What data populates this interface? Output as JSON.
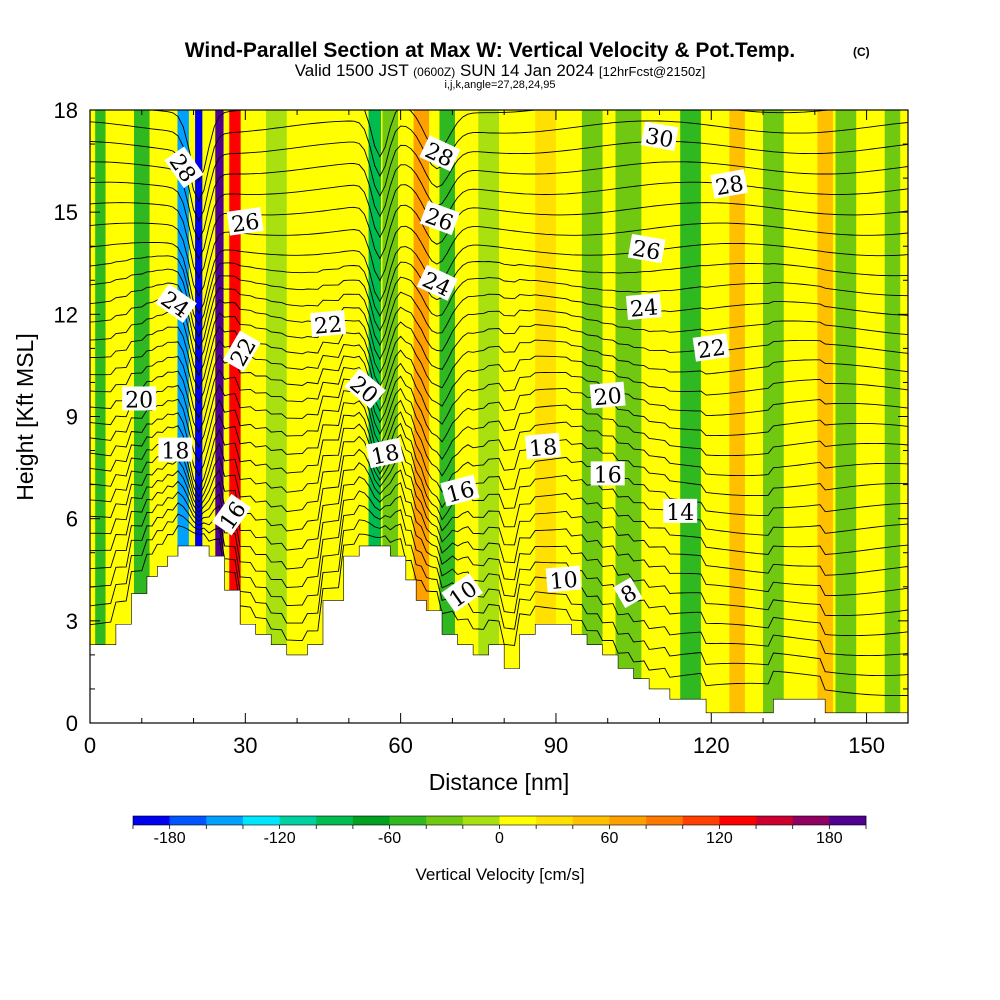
{
  "title": {
    "main": "Wind-Parallel Section at Max W: Vertical Velocity & Pot.Temp.",
    "copyright": "(C)",
    "valid_prefix": "Valid 1500 JST",
    "utc": "(0600Z)",
    "date": "SUN 14 Jan 2024",
    "forecast": "[12hrFcst@2150z]",
    "indices": "i,j,k,angle=27,28,24,95"
  },
  "chart_data": {
    "type": "heatmap",
    "xlabel": "Distance [nm]",
    "ylabel": "Height [Kft MSL]",
    "xlim": [
      0,
      158
    ],
    "ylim": [
      0,
      18
    ],
    "x_ticks": [
      "0",
      "30",
      "60",
      "90",
      "120",
      "150"
    ],
    "y_ticks": [
      "0",
      "3",
      "6",
      "9",
      "12",
      "15",
      "18"
    ],
    "colorbar": {
      "label": "Vertical Velocity [cm/s]",
      "min": -200,
      "max": 200,
      "step": 20,
      "tick_labels": [
        "-180",
        "-120",
        "-60",
        "0",
        "60",
        "120",
        "180"
      ],
      "colors": [
        "#0000f0",
        "#0055ff",
        "#00a0ff",
        "#00e6ff",
        "#00d0a0",
        "#00bb50",
        "#00a020",
        "#30b820",
        "#70c810",
        "#a8e010",
        "#ffff00",
        "#ffe000",
        "#ffc000",
        "#ffa000",
        "#ff7800",
        "#ff4000",
        "#ff0000",
        "#cc0030",
        "#900060",
        "#500090"
      ]
    },
    "terrain_profile": [
      [
        0,
        2.3
      ],
      [
        5,
        2.3
      ],
      [
        5,
        2.9
      ],
      [
        8,
        2.9
      ],
      [
        8,
        3.8
      ],
      [
        11,
        3.8
      ],
      [
        11,
        4.3
      ],
      [
        13,
        4.3
      ],
      [
        13,
        4.6
      ],
      [
        15,
        4.6
      ],
      [
        15,
        4.9
      ],
      [
        17,
        4.9
      ],
      [
        17,
        5.2
      ],
      [
        23,
        5.2
      ],
      [
        23,
        4.9
      ],
      [
        26,
        4.9
      ],
      [
        26,
        3.9
      ],
      [
        29,
        3.9
      ],
      [
        29,
        2.9
      ],
      [
        32,
        2.9
      ],
      [
        32,
        2.6
      ],
      [
        35,
        2.6
      ],
      [
        35,
        2.3
      ],
      [
        38,
        2.3
      ],
      [
        38,
        2.0
      ],
      [
        42,
        2.0
      ],
      [
        42,
        2.3
      ],
      [
        45,
        2.3
      ],
      [
        45,
        3.6
      ],
      [
        49,
        3.6
      ],
      [
        49,
        4.9
      ],
      [
        52,
        4.9
      ],
      [
        52,
        5.2
      ],
      [
        58,
        5.2
      ],
      [
        58,
        4.9
      ],
      [
        61,
        4.9
      ],
      [
        61,
        4.2
      ],
      [
        63,
        4.2
      ],
      [
        63,
        3.6
      ],
      [
        65,
        3.6
      ],
      [
        65,
        3.3
      ],
      [
        68,
        3.3
      ],
      [
        68,
        2.6
      ],
      [
        71,
        2.6
      ],
      [
        71,
        2.3
      ],
      [
        74,
        2.3
      ],
      [
        74,
        2.0
      ],
      [
        77,
        2.0
      ],
      [
        77,
        2.3
      ],
      [
        80,
        2.3
      ],
      [
        80,
        1.6
      ],
      [
        83,
        1.6
      ],
      [
        83,
        2.6
      ],
      [
        86,
        2.6
      ],
      [
        86,
        2.9
      ],
      [
        93,
        2.9
      ],
      [
        93,
        2.6
      ],
      [
        96,
        2.6
      ],
      [
        96,
        2.3
      ],
      [
        99,
        2.3
      ],
      [
        99,
        2.0
      ],
      [
        102,
        2.0
      ],
      [
        102,
        1.6
      ],
      [
        105,
        1.6
      ],
      [
        105,
        1.3
      ],
      [
        108,
        1.3
      ],
      [
        108,
        1.0
      ],
      [
        112,
        1.0
      ],
      [
        112,
        0.7
      ],
      [
        119,
        0.7
      ],
      [
        119,
        0.3
      ],
      [
        132,
        0.3
      ],
      [
        132,
        0.7
      ],
      [
        142,
        0.7
      ],
      [
        142,
        0.3
      ],
      [
        158,
        0.3
      ]
    ],
    "vertical_velocity_bands": [
      {
        "x": 2,
        "width": 2,
        "w": -50
      },
      {
        "x": 10,
        "width": 3,
        "w": -60
      },
      {
        "x": 18,
        "width": 2.2,
        "w": -150
      },
      {
        "x": 21,
        "width": 1.4,
        "w": -190
      },
      {
        "x": 25,
        "width": 1.6,
        "w": 180
      },
      {
        "x": 28,
        "width": 2.2,
        "w": 130
      },
      {
        "x": 36,
        "width": 4,
        "w": -20
      },
      {
        "x": 45,
        "width": 3,
        "w": 10
      },
      {
        "x": 55,
        "width": 2.4,
        "w": -100
      },
      {
        "x": 58,
        "width": 3,
        "w": -40
      },
      {
        "x": 64,
        "width": 3,
        "w": 70
      },
      {
        "x": 69,
        "width": 3,
        "w": -60
      },
      {
        "x": 77,
        "width": 4,
        "w": -20
      },
      {
        "x": 88,
        "width": 4,
        "w": 20
      },
      {
        "x": 97,
        "width": 4,
        "w": -25
      },
      {
        "x": 104,
        "width": 5,
        "w": -40
      },
      {
        "x": 116,
        "width": 4,
        "w": -45
      },
      {
        "x": 125,
        "width": 3,
        "w": 50
      },
      {
        "x": 132,
        "width": 4,
        "w": -40
      },
      {
        "x": 142,
        "width": 3,
        "w": 45
      },
      {
        "x": 146,
        "width": 4,
        "w": -40
      },
      {
        "x": 155,
        "width": 3,
        "w": -30
      }
    ],
    "theta_labels": [
      {
        "text": "28",
        "x": 18,
        "y": 16.3,
        "rotate": 55
      },
      {
        "text": "26",
        "x": 30,
        "y": 14.7,
        "rotate": -8
      },
      {
        "text": "24",
        "x": 16.5,
        "y": 12.3,
        "rotate": 35
      },
      {
        "text": "22",
        "x": 29.5,
        "y": 10.9,
        "rotate": -60
      },
      {
        "text": "20",
        "x": 9.5,
        "y": 9.5,
        "rotate": 0
      },
      {
        "text": "18",
        "x": 16.5,
        "y": 8.0,
        "rotate": 0
      },
      {
        "text": "16",
        "x": 27.5,
        "y": 6.1,
        "rotate": -55
      },
      {
        "text": "22",
        "x": 46,
        "y": 11.7,
        "rotate": -5
      },
      {
        "text": "20",
        "x": 53,
        "y": 9.8,
        "rotate": 40
      },
      {
        "text": "18",
        "x": 57,
        "y": 7.9,
        "rotate": -12
      },
      {
        "text": "28",
        "x": 67.5,
        "y": 16.7,
        "rotate": 25
      },
      {
        "text": "26",
        "x": 67.5,
        "y": 14.8,
        "rotate": 20
      },
      {
        "text": "24",
        "x": 67,
        "y": 12.9,
        "rotate": 25
      },
      {
        "text": "16",
        "x": 71.5,
        "y": 6.8,
        "rotate": -15
      },
      {
        "text": "10",
        "x": 72,
        "y": 3.8,
        "rotate": -35
      },
      {
        "text": "18",
        "x": 87.5,
        "y": 8.1,
        "rotate": -5
      },
      {
        "text": "20",
        "x": 100,
        "y": 9.6,
        "rotate": -5
      },
      {
        "text": "16",
        "x": 100,
        "y": 7.3,
        "rotate": 0
      },
      {
        "text": "10",
        "x": 91.5,
        "y": 4.2,
        "rotate": -5
      },
      {
        "text": "8",
        "x": 104,
        "y": 3.8,
        "rotate": -30
      },
      {
        "text": "14",
        "x": 114,
        "y": 6.2,
        "rotate": 0
      },
      {
        "text": "22",
        "x": 120,
        "y": 11.0,
        "rotate": -8
      },
      {
        "text": "24",
        "x": 107,
        "y": 12.2,
        "rotate": -5
      },
      {
        "text": "26",
        "x": 107.5,
        "y": 13.9,
        "rotate": 10
      },
      {
        "text": "28",
        "x": 123.5,
        "y": 15.8,
        "rotate": -10
      },
      {
        "text": "30",
        "x": 110,
        "y": 17.2,
        "rotate": 10
      }
    ]
  }
}
